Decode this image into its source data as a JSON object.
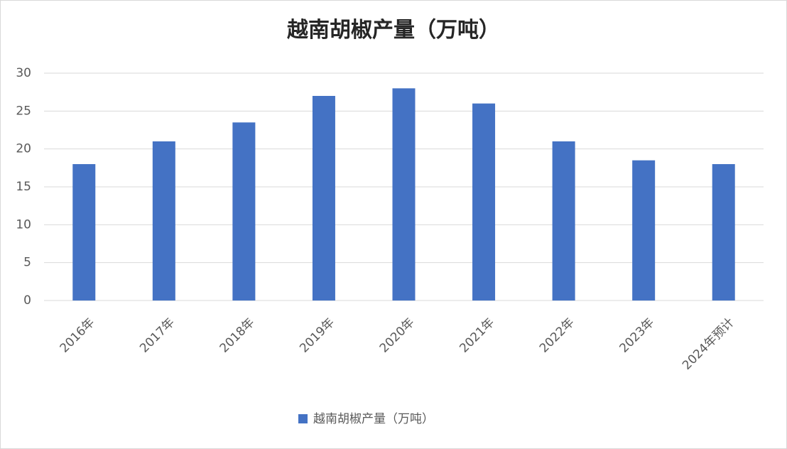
{
  "chart_data": {
    "type": "bar",
    "title": "越南胡椒产量（万吨）",
    "categories": [
      "2016年",
      "2017年",
      "2018年",
      "2019年",
      "2020年",
      "2021年",
      "2022年",
      "2023年",
      "2024年预计"
    ],
    "series": [
      {
        "name": "越南胡椒产量（万吨）",
        "color": "#4472c4",
        "values": [
          18,
          21,
          23.5,
          27,
          28,
          26,
          21,
          18.5,
          18
        ]
      }
    ],
    "ylim": [
      0,
      30
    ],
    "yticks": [
      0,
      5,
      10,
      15,
      20,
      25,
      30
    ],
    "grid": true,
    "legend": "bottom"
  }
}
